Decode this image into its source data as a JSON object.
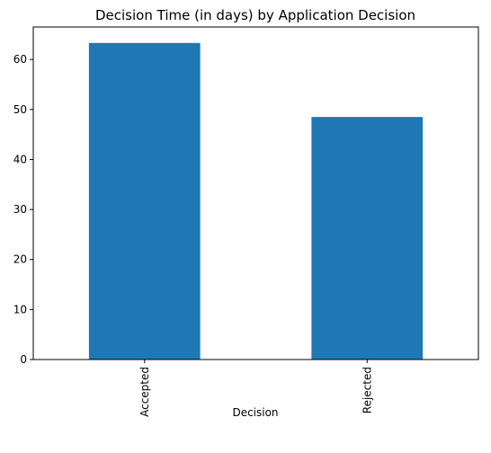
{
  "chart_data": {
    "type": "bar",
    "title": "Decision Time (in days) by Application Decision",
    "xlabel": "Decision",
    "ylabel": "",
    "categories": [
      "Accepted",
      "Rejected"
    ],
    "values": [
      63.3,
      48.5
    ],
    "ylim": [
      0,
      66.5
    ],
    "yticks": [
      0,
      10,
      20,
      30,
      40,
      50,
      60
    ],
    "bar_color": "#1f77b4",
    "grid": false,
    "legend": "none"
  }
}
